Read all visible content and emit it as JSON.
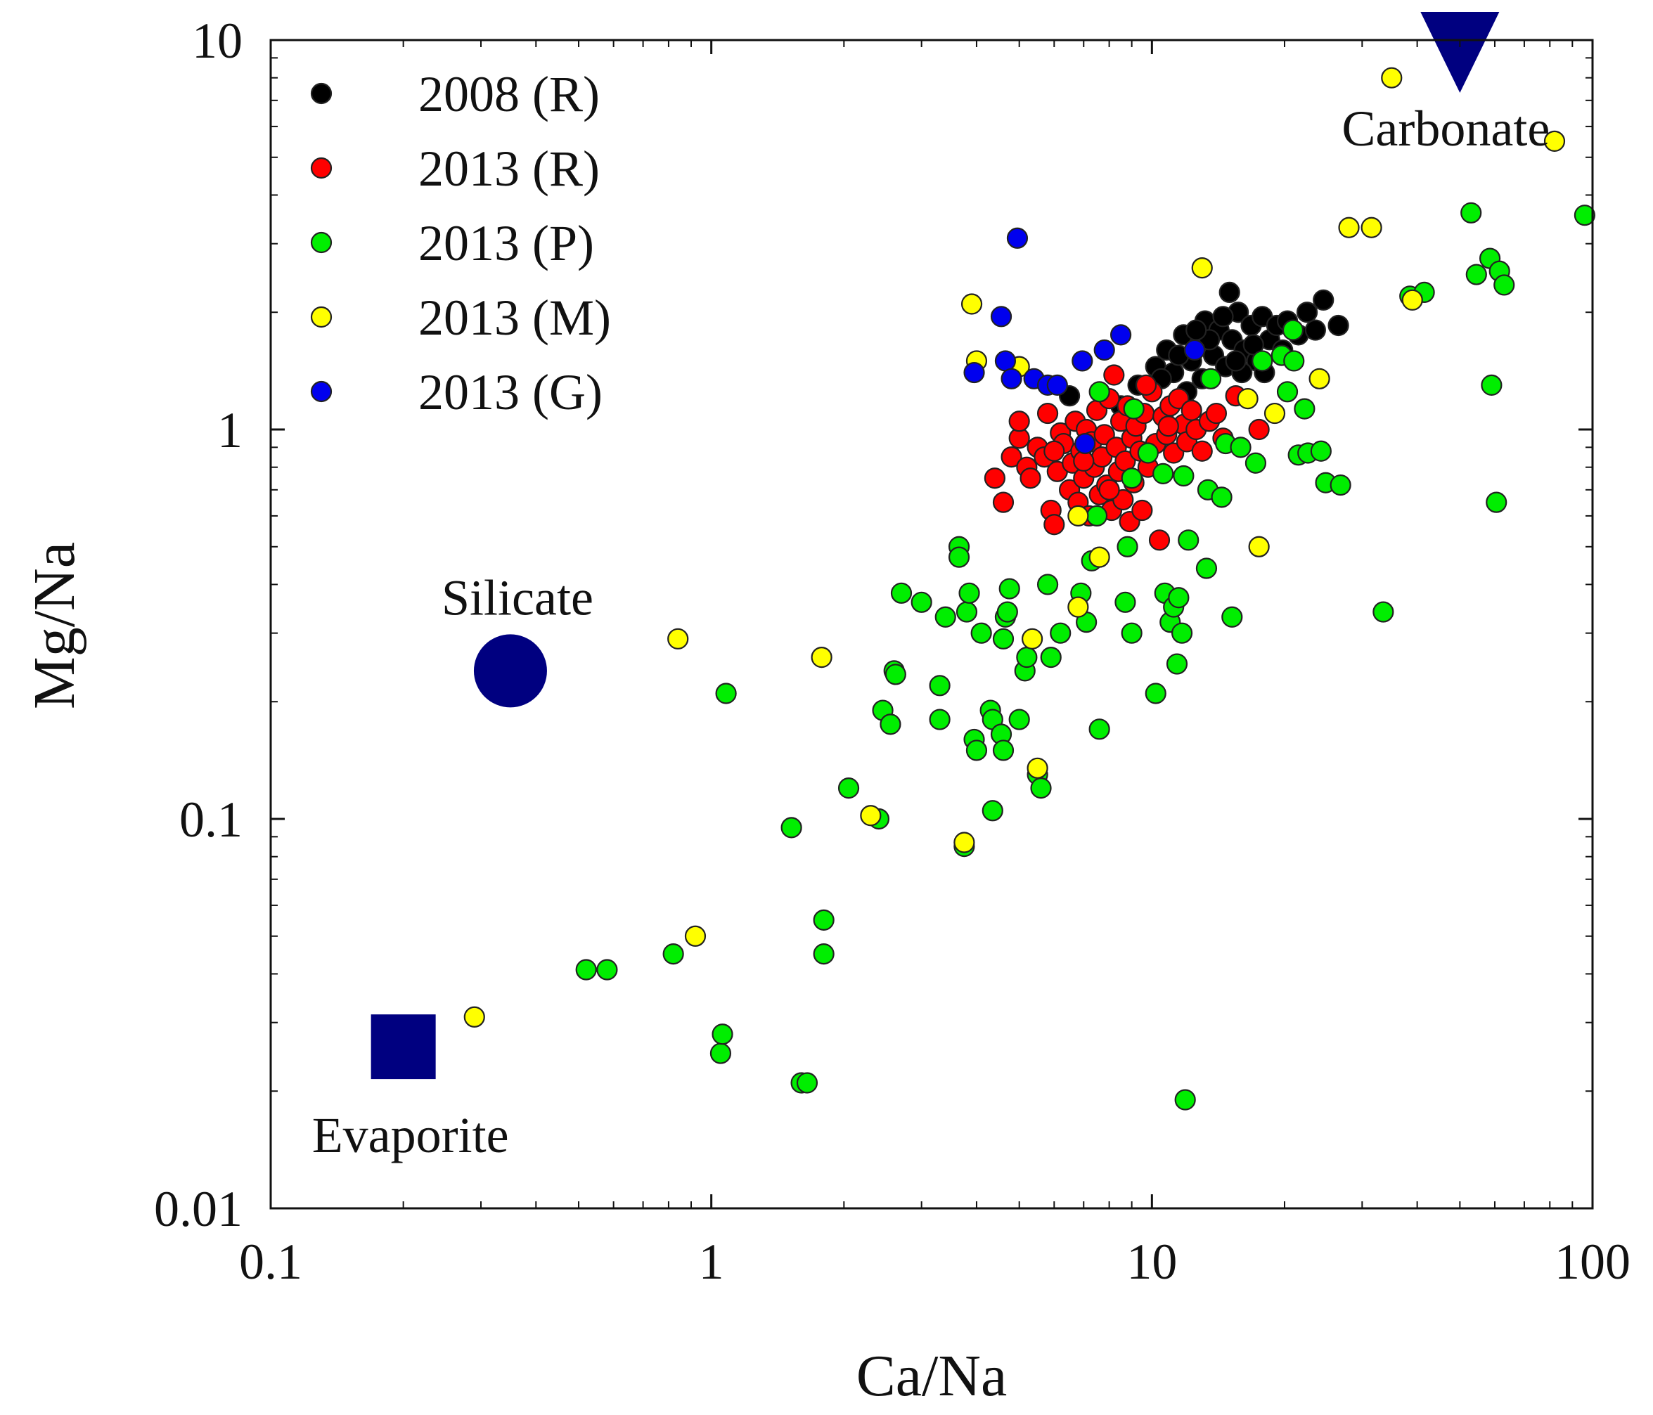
{
  "chart_data": {
    "type": "scatter",
    "xlabel": "Ca/Na",
    "ylabel": "Mg/Na",
    "xscale": "log",
    "yscale": "log",
    "xlim": [
      0.1,
      100
    ],
    "ylim": [
      0.01,
      10
    ],
    "x_ticks": [
      {
        "value": 0.1,
        "label": "0.1"
      },
      {
        "value": 1,
        "label": "1"
      },
      {
        "value": 10,
        "label": "10"
      },
      {
        "value": 100,
        "label": "100"
      }
    ],
    "y_ticks": [
      {
        "value": 0.01,
        "label": "0.01"
      },
      {
        "value": 0.1,
        "label": "0.1"
      },
      {
        "value": 1,
        "label": "1"
      },
      {
        "value": 10,
        "label": "10"
      }
    ],
    "legend_position": "top-left",
    "series": [
      {
        "name": "2008 (R)",
        "color": "#000000",
        "points": [
          [
            6.5,
            1.22
          ],
          [
            8.5,
            1.15
          ],
          [
            9.3,
            1.3
          ],
          [
            10.2,
            1.45
          ],
          [
            10.8,
            1.6
          ],
          [
            11.2,
            1.4
          ],
          [
            11.8,
            1.75
          ],
          [
            12.3,
            1.5
          ],
          [
            12.8,
            1.65
          ],
          [
            13.2,
            1.9
          ],
          [
            13.8,
            1.55
          ],
          [
            14.2,
            1.8
          ],
          [
            14.7,
            1.45
          ],
          [
            15.2,
            1.7
          ],
          [
            15.7,
            2.0
          ],
          [
            16.2,
            1.6
          ],
          [
            16.8,
            1.85
          ],
          [
            17.3,
            1.5
          ],
          [
            17.8,
            1.95
          ],
          [
            18.5,
            1.7
          ],
          [
            19.2,
            1.85
          ],
          [
            20.3,
            1.9
          ],
          [
            21.5,
            1.75
          ],
          [
            22.5,
            2.0
          ],
          [
            23.5,
            1.8
          ],
          [
            24.5,
            2.15
          ],
          [
            26.5,
            1.85
          ],
          [
            13.0,
            1.35
          ],
          [
            15.0,
            2.25
          ],
          [
            16.0,
            1.4
          ],
          [
            18.0,
            1.4
          ],
          [
            12.0,
            1.25
          ],
          [
            14.5,
            1.95
          ],
          [
            11.5,
            1.55
          ],
          [
            17.0,
            1.65
          ],
          [
            19.8,
            1.6
          ],
          [
            13.5,
            1.7
          ],
          [
            15.5,
            1.5
          ],
          [
            12.6,
            1.8
          ],
          [
            10.5,
            1.35
          ]
        ]
      },
      {
        "name": "2013 (R)",
        "color": "#ff0000",
        "points": [
          [
            4.4,
            0.75
          ],
          [
            4.6,
            0.65
          ],
          [
            4.8,
            0.85
          ],
          [
            5.0,
            0.95
          ],
          [
            5.0,
            1.05
          ],
          [
            5.2,
            0.8
          ],
          [
            5.3,
            0.75
          ],
          [
            5.5,
            0.9
          ],
          [
            5.7,
            0.85
          ],
          [
            5.8,
            1.1
          ],
          [
            5.9,
            0.62
          ],
          [
            6.0,
            0.57
          ],
          [
            6.1,
            0.78
          ],
          [
            6.2,
            0.98
          ],
          [
            6.3,
            0.92
          ],
          [
            6.5,
            0.7
          ],
          [
            6.6,
            0.82
          ],
          [
            6.7,
            1.05
          ],
          [
            6.8,
            0.65
          ],
          [
            6.9,
            0.88
          ],
          [
            7.0,
            0.75
          ],
          [
            7.1,
            1.0
          ],
          [
            7.2,
            0.6
          ],
          [
            7.3,
            0.93
          ],
          [
            7.4,
            0.8
          ],
          [
            7.5,
            1.12
          ],
          [
            7.6,
            0.68
          ],
          [
            7.7,
            0.85
          ],
          [
            7.8,
            0.97
          ],
          [
            7.9,
            0.72
          ],
          [
            8.0,
            1.2
          ],
          [
            8.1,
            0.62
          ],
          [
            8.2,
            1.38
          ],
          [
            8.3,
            0.9
          ],
          [
            8.4,
            0.78
          ],
          [
            8.5,
            1.05
          ],
          [
            8.6,
            0.66
          ],
          [
            8.7,
            0.83
          ],
          [
            8.8,
            1.15
          ],
          [
            8.9,
            0.58
          ],
          [
            9.0,
            0.95
          ],
          [
            9.1,
            0.73
          ],
          [
            9.2,
            1.02
          ],
          [
            9.4,
            0.88
          ],
          [
            9.6,
            1.1
          ],
          [
            9.8,
            0.8
          ],
          [
            10.0,
            1.25
          ],
          [
            10.2,
            0.92
          ],
          [
            10.4,
            0.52
          ],
          [
            10.6,
            1.08
          ],
          [
            10.8,
            0.97
          ],
          [
            11.0,
            1.15
          ],
          [
            11.2,
            0.87
          ],
          [
            11.5,
            1.2
          ],
          [
            11.8,
            1.03
          ],
          [
            12.0,
            0.93
          ],
          [
            12.3,
            1.12
          ],
          [
            12.6,
            1.0
          ],
          [
            13.0,
            0.88
          ],
          [
            13.5,
            1.05
          ],
          [
            14.0,
            1.1
          ],
          [
            14.5,
            0.95
          ],
          [
            15.5,
            1.22
          ],
          [
            17.5,
            1.0
          ],
          [
            9.5,
            0.62
          ],
          [
            8.0,
            0.7
          ],
          [
            7.0,
            0.83
          ],
          [
            6.0,
            0.88
          ],
          [
            9.7,
            1.3
          ],
          [
            10.9,
            1.02
          ]
        ]
      },
      {
        "name": "2013 (P)",
        "color": "#00ee00",
        "points": [
          [
            0.52,
            0.041
          ],
          [
            0.58,
            0.041
          ],
          [
            0.82,
            0.045
          ],
          [
            1.05,
            0.025
          ],
          [
            1.06,
            0.028
          ],
          [
            1.08,
            0.21
          ],
          [
            1.52,
            0.095
          ],
          [
            1.6,
            0.021
          ],
          [
            1.65,
            0.021
          ],
          [
            1.8,
            0.045
          ],
          [
            1.8,
            0.055
          ],
          [
            2.05,
            0.12
          ],
          [
            2.4,
            0.1
          ],
          [
            2.45,
            0.19
          ],
          [
            2.55,
            0.175
          ],
          [
            2.6,
            0.24
          ],
          [
            2.62,
            0.235
          ],
          [
            2.7,
            0.38
          ],
          [
            3.0,
            0.36
          ],
          [
            3.3,
            0.18
          ],
          [
            3.3,
            0.22
          ],
          [
            3.4,
            0.33
          ],
          [
            3.65,
            0.5
          ],
          [
            3.65,
            0.47
          ],
          [
            3.75,
            0.085
          ],
          [
            3.8,
            0.34
          ],
          [
            3.85,
            0.38
          ],
          [
            3.95,
            0.16
          ],
          [
            4.0,
            0.15
          ],
          [
            4.1,
            0.3
          ],
          [
            4.3,
            0.19
          ],
          [
            4.35,
            0.105
          ],
          [
            4.35,
            0.18
          ],
          [
            4.55,
            0.165
          ],
          [
            4.6,
            0.15
          ],
          [
            4.6,
            0.29
          ],
          [
            4.65,
            0.33
          ],
          [
            4.7,
            0.34
          ],
          [
            4.75,
            0.39
          ],
          [
            5.0,
            0.18
          ],
          [
            5.15,
            0.24
          ],
          [
            5.2,
            0.26
          ],
          [
            5.5,
            0.13
          ],
          [
            5.6,
            0.12
          ],
          [
            5.8,
            0.4
          ],
          [
            5.9,
            0.26
          ],
          [
            6.2,
            0.3
          ],
          [
            6.9,
            0.38
          ],
          [
            7.1,
            0.32
          ],
          [
            7.3,
            0.46
          ],
          [
            7.5,
            0.6
          ],
          [
            7.6,
            1.25
          ],
          [
            7.6,
            0.17
          ],
          [
            8.7,
            0.36
          ],
          [
            8.8,
            0.5
          ],
          [
            9.0,
            0.3
          ],
          [
            9.0,
            0.75
          ],
          [
            9.1,
            1.13
          ],
          [
            9.8,
            0.87
          ],
          [
            10.2,
            0.21
          ],
          [
            10.6,
            0.77
          ],
          [
            10.7,
            0.38
          ],
          [
            11.0,
            0.32
          ],
          [
            11.2,
            0.35
          ],
          [
            11.4,
            0.25
          ],
          [
            11.5,
            0.37
          ],
          [
            11.7,
            0.3
          ],
          [
            11.8,
            0.76
          ],
          [
            11.9,
            0.019
          ],
          [
            12.1,
            0.52
          ],
          [
            13.3,
            0.44
          ],
          [
            13.4,
            0.7
          ],
          [
            13.6,
            1.35
          ],
          [
            14.4,
            0.67
          ],
          [
            14.7,
            0.92
          ],
          [
            15.2,
            0.33
          ],
          [
            15.9,
            0.9
          ],
          [
            17.2,
            0.82
          ],
          [
            17.8,
            1.5
          ],
          [
            19.7,
            1.55
          ],
          [
            20.3,
            1.25
          ],
          [
            20.9,
            1.8
          ],
          [
            21.0,
            1.5
          ],
          [
            21.5,
            0.86
          ],
          [
            22.2,
            1.13
          ],
          [
            22.6,
            0.87
          ],
          [
            24.2,
            0.88
          ],
          [
            24.8,
            0.73
          ],
          [
            26.8,
            0.72
          ],
          [
            33.5,
            0.34
          ],
          [
            38.5,
            2.2
          ],
          [
            41.5,
            2.25
          ],
          [
            53.0,
            3.6
          ],
          [
            54.5,
            2.5
          ],
          [
            58.5,
            2.75
          ],
          [
            59.0,
            1.3
          ],
          [
            60.5,
            0.65
          ],
          [
            61.5,
            2.55
          ],
          [
            63.0,
            2.35
          ],
          [
            96.0,
            3.55
          ]
        ]
      },
      {
        "name": "2013 (M)",
        "color": "#ffff00",
        "points": [
          [
            0.29,
            0.031
          ],
          [
            0.84,
            0.29
          ],
          [
            0.92,
            0.05
          ],
          [
            1.78,
            0.26
          ],
          [
            2.3,
            0.102
          ],
          [
            3.75,
            0.087
          ],
          [
            3.9,
            2.1
          ],
          [
            4.0,
            1.5
          ],
          [
            5.0,
            1.45
          ],
          [
            5.35,
            0.29
          ],
          [
            5.5,
            0.135
          ],
          [
            6.8,
            0.6
          ],
          [
            6.8,
            0.35
          ],
          [
            7.6,
            0.47
          ],
          [
            13.0,
            2.6
          ],
          [
            16.5,
            1.2
          ],
          [
            17.5,
            0.5
          ],
          [
            19.0,
            1.1
          ],
          [
            24.0,
            1.35
          ],
          [
            28.0,
            3.3
          ],
          [
            31.5,
            3.3
          ],
          [
            35.0,
            8.0
          ],
          [
            39.0,
            2.15
          ],
          [
            82.0,
            5.5
          ]
        ]
      },
      {
        "name": "2013 (G)",
        "color": "#0000ee",
        "points": [
          [
            3.95,
            1.4
          ],
          [
            4.55,
            1.95
          ],
          [
            4.65,
            1.5
          ],
          [
            4.8,
            1.35
          ],
          [
            4.95,
            3.1
          ],
          [
            5.4,
            1.35
          ],
          [
            5.8,
            1.3
          ],
          [
            6.1,
            1.3
          ],
          [
            6.95,
            1.5
          ],
          [
            7.05,
            0.92
          ],
          [
            7.8,
            1.6
          ],
          [
            8.5,
            1.75
          ],
          [
            12.5,
            1.6
          ]
        ]
      }
    ],
    "endmembers": [
      {
        "name": "Silicate",
        "label": "Silicate",
        "x": 0.35,
        "y": 0.24,
        "marker": "circle",
        "color": "#000080"
      },
      {
        "name": "Evaporite",
        "label": "Evaporite",
        "x": 0.2,
        "y": 0.026,
        "marker": "square",
        "color": "#000080"
      },
      {
        "name": "Carbonate",
        "label": "Carbonate",
        "x": 50,
        "y": 9.2,
        "marker": "triangle-down",
        "color": "#000080"
      }
    ]
  }
}
